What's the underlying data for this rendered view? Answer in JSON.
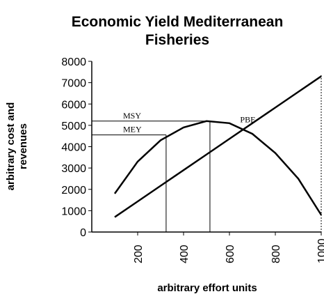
{
  "chart_data": {
    "type": "line",
    "title": [
      "Economic Yield Mediterranean",
      "Fisheries"
    ],
    "xlabel": "arbitrary effort units",
    "ylabel": [
      "arbitrary cost and",
      "revenues"
    ],
    "x": [
      100,
      200,
      300,
      400,
      500,
      600,
      700,
      800,
      900,
      1000
    ],
    "series": [
      {
        "color": "#000000",
        "values": [
          1800,
          3300,
          4300,
          4900,
          5200,
          5100,
          4600,
          3700,
          2500,
          800
        ]
      },
      {
        "color": "#000000",
        "values": [
          700,
          1433,
          2167,
          2900,
          3633,
          4367,
          5100,
          5833,
          6567,
          7300
        ]
      }
    ],
    "annotations": [
      {
        "label": "MSY",
        "x": 515,
        "y": 5200
      },
      {
        "label": "MEY",
        "x": 324,
        "y": 4550
      },
      {
        "label": "PBE",
        "x": 680,
        "y": 5150
      }
    ],
    "xlim": [
      0,
      1000
    ],
    "xticks": [
      200,
      400,
      600,
      800,
      1000
    ],
    "ylim": [
      0,
      8000
    ],
    "yticks": [
      0,
      1000,
      2000,
      3000,
      4000,
      5000,
      6000,
      7000,
      8000
    ]
  }
}
